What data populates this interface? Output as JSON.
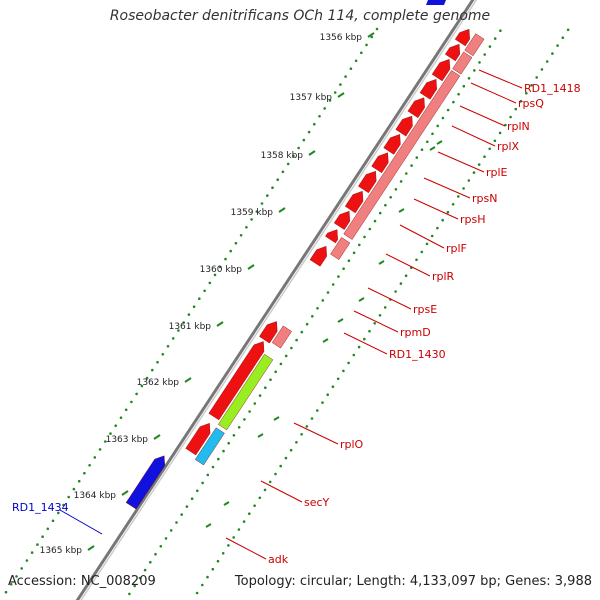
{
  "title": "Roseobacter denitrificans OCh 114, complete genome",
  "accession": "Accession: NC_008209",
  "topology": "Topology: circular; Length: 4,133,097 bp; Genes: 3,988",
  "colors": {
    "cds_red": "#ee1111",
    "cds_light": "#f08080",
    "cds_blue": "#1111dd",
    "secy_green": "#99ee22",
    "adk_cyan": "#22bbee",
    "backbone": "#888888",
    "tick": "#228822",
    "label_red": "#cc0000",
    "label_blue": "#0000cc"
  },
  "kbp_labels": [
    "1356 kbp",
    "1357 kbp",
    "1358 kbp",
    "1359 kbp",
    "1360 kbp",
    "1361 kbp",
    "1362 kbp",
    "1363 kbp",
    "1364 kbp",
    "1365 kbp"
  ],
  "gene_labels": [
    "RD1_1418",
    "rpsQ",
    "rplN",
    "rplX",
    "rplE",
    "rpsN",
    "rpsH",
    "rplF",
    "rplR",
    "rpsE",
    "rpmD",
    "RD1_1430",
    "rplO",
    "secY",
    "adk",
    "RD1_1434"
  ]
}
